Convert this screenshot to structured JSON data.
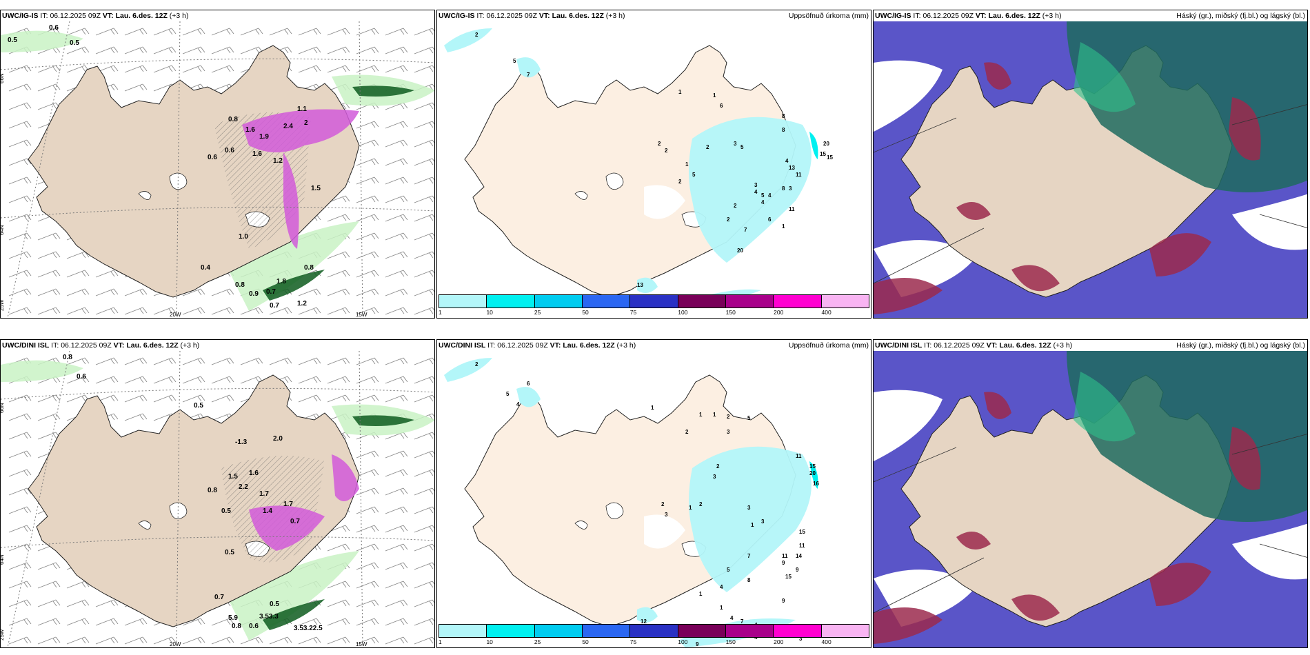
{
  "rows": [
    {
      "model": "UWC/IG-IS",
      "it_label": "IT:",
      "it_value": "06.12.2025 09Z",
      "vt_label": "VT:",
      "vt_value": "Lau. 6.des. 12Z",
      "lead": "(+3 h)",
      "wind_panel": {
        "axis_labels": {
          "lat_top": "66N",
          "lat_mid": "64N",
          "lon_left": "25W",
          "lon_20": "20W",
          "lon_15": "15W"
        },
        "values": [
          "0.6",
          "0.5",
          "0.5",
          "0.8",
          "1.6",
          "1.9",
          "2.4",
          "1.1",
          "0.6",
          "1.6",
          "1.2",
          "2",
          "1.5",
          "0.6",
          "1.0",
          "0.4",
          "0.8",
          "1.8",
          "0.8",
          "0.9",
          "0.7",
          "0.7",
          "1.2"
        ]
      },
      "precip_panel": {
        "right_title": "Uppsöfnuð úrkoma (mm)",
        "values": [
          "2",
          "5",
          "7",
          "1",
          "1",
          "6",
          "8",
          "8",
          "20",
          "15",
          "15",
          "5",
          "3",
          "4",
          "13",
          "11",
          "2",
          "2",
          "2",
          "1",
          "5",
          "2",
          "3",
          "8",
          "3",
          "4",
          "5",
          "4",
          "2",
          "4",
          "2",
          "6",
          "7",
          "11",
          "1",
          "20",
          "13",
          "1",
          "2"
        ]
      },
      "cloud_panel": {
        "right_title": "Háský (gr.), miðský (fj.bl.) og lágský (bl.)"
      }
    },
    {
      "model": "UWC/DINI ISL",
      "it_label": "IT:",
      "it_value": "06.12.2025 09Z",
      "vt_label": "VT:",
      "vt_value": "Lau. 6.des. 12Z",
      "lead": "(+3 h)",
      "wind_panel": {
        "axis_labels": {
          "lat_top": "66N",
          "lat_mid": "64N",
          "lon_left": "25W",
          "lon_20": "20W",
          "lon_15": "15W"
        },
        "values": [
          "0.8",
          "0.6",
          "0.5",
          "-1.3",
          "2.0",
          "1.6",
          "0.8",
          "1.5",
          "2.2",
          "1.7",
          "0.5",
          "1.4",
          "1.7",
          "0.7",
          "0.5",
          "0.7",
          "0.5",
          "5.9",
          "3.53.3",
          "0.8",
          "0.6",
          "3.53.22.5"
        ]
      },
      "precip_panel": {
        "right_title": "Uppsöfnuð úrkoma (mm)",
        "values": [
          "2",
          "6",
          "4",
          "5",
          "1",
          "1",
          "1",
          "2",
          "5",
          "2",
          "3",
          "11",
          "15",
          "20",
          "16",
          "2",
          "3",
          "2",
          "1",
          "3",
          "2",
          "3",
          "1",
          "3",
          "15",
          "11",
          "7",
          "11",
          "14",
          "5",
          "9",
          "9",
          "4",
          "8",
          "15",
          "1",
          "4",
          "7",
          "1",
          "9",
          "12",
          "6",
          "4",
          "4",
          "3",
          "3",
          "9"
        ]
      },
      "cloud_panel": {
        "right_title": "Háský (gr.), miðský (fj.bl.) og lágský (bl.)"
      }
    }
  ],
  "colorbar": {
    "ticks": [
      "1",
      "10",
      "25",
      "50",
      "75",
      "100",
      "150",
      "200",
      "400"
    ],
    "colors": [
      "#b3f6f9",
      "#00f0f0",
      "#00ccf0",
      "#2b67f2",
      "#2a31c4",
      "#790059",
      "#a8008a",
      "#ff00d0",
      "#f8b4f2"
    ]
  },
  "colors": {
    "land": "#e6d5c3",
    "land_precip": "#fcefe2",
    "green_light": "#c9f2c4",
    "green_dark": "#0e5c1e",
    "magenta": "#d15ad9",
    "cloud_high": "#1f6b5f",
    "cloud_mid": "#5a55c8",
    "cloud_low": "#9b2a4e"
  }
}
